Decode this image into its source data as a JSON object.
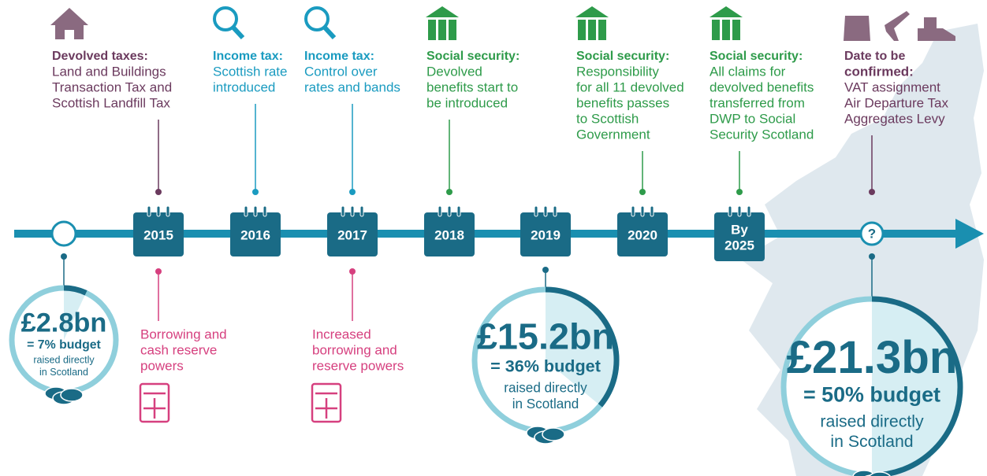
{
  "milestones": [
    {
      "lines": []
    },
    {
      "lines": [
        "2015"
      ]
    },
    {
      "lines": [
        "2016"
      ]
    },
    {
      "lines": [
        "2017"
      ]
    },
    {
      "lines": [
        "2018"
      ]
    },
    {
      "lines": [
        "2019"
      ]
    },
    {
      "lines": [
        "2020"
      ]
    },
    {
      "lines": [
        "By",
        "2025"
      ]
    },
    {
      "lines": [
        "?"
      ]
    }
  ],
  "top_events": [
    {
      "heading": "Devolved taxes:",
      "lines": [
        "Land and Buildings",
        "Transaction Tax and",
        "Scottish Landfill Tax"
      ]
    },
    {
      "heading": "Income tax:",
      "lines": [
        "Scottish rate",
        "introduced"
      ]
    },
    {
      "heading": "Income tax:",
      "lines": [
        "Control over",
        "rates and bands"
      ]
    },
    {
      "heading": "Social security:",
      "lines": [
        "Devolved",
        "benefits start to",
        "be introduced"
      ]
    },
    {
      "heading": "Social security:",
      "lines": [
        "Responsibility",
        "for all 11 devolved",
        "benefits passes",
        "to Scottish",
        "Government"
      ]
    },
    {
      "heading": "Social security:",
      "lines": [
        "All claims for",
        "devolved benefits",
        "transferred from",
        "DWP to Social",
        "Security Scotland"
      ]
    },
    {
      "heading": "Date to be",
      "lines": [
        "confirmed:",
        "VAT assignment",
        "Air Departure Tax",
        "Aggregates Levy"
      ]
    }
  ],
  "bottom_events": [
    {
      "lines": [
        "Borrowing and",
        "cash reserve",
        "powers"
      ]
    },
    {
      "lines": [
        "Increased",
        "borrowing and",
        "reserve powers"
      ]
    }
  ],
  "budgets": [
    {
      "amount": "£2.8bn",
      "share": {
        "value": 7,
        "label": "= 7% budget"
      },
      "note": [
        "raised directly",
        "in Scotland"
      ]
    },
    {
      "amount": "£15.2bn",
      "share": {
        "value": 36,
        "label": "= 36% budget"
      },
      "note": [
        "raised directly",
        "in Scotland"
      ]
    },
    {
      "amount": "£21.3bn",
      "share": {
        "value": 50,
        "label": "= 50% budget"
      },
      "note": [
        "raised directly",
        "in Scotland"
      ]
    }
  ]
}
